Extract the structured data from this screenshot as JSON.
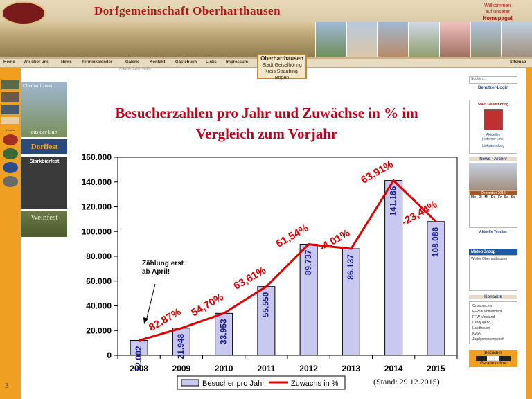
{
  "header": {
    "site_title": "Dorfgemeinschaft Oberharthausen",
    "welcome_line1": "Willkommen",
    "welcome_line2": "auf unserer",
    "welcome_line3": "Homepage!"
  },
  "nav": {
    "items": [
      "Home",
      "Wir über uns",
      "News",
      "Terminkalender",
      "Galerie",
      "Kontakt",
      "Gästebuch",
      "Links",
      "Impressum"
    ],
    "sitemap": "Sitemap",
    "actual_page": "Aktuelle Seite: Home"
  },
  "place_box": {
    "name": "Oberharthausen",
    "line2": "Stadt Geiselhöring",
    "line3": "Kreis Straubing-Bogen"
  },
  "left": {
    "aus_der_luft": "aus der Luft",
    "oberharthausen": "Oberharthausen",
    "dorffest": "Dorffest",
    "starkbierfest": "Starkbierfest",
    "weinfest": "Weinfest",
    "vereine": "Vereine"
  },
  "right": {
    "search_placeholder": "Suchen...",
    "login": "Benutzer-Login",
    "stadt": "Stadt Geiselhöring",
    "aktuelles": "Aktuelles",
    "externer": "(externer Link)",
    "linksammlung": "Linksammlung",
    "news_archiv": "News - Archiv",
    "calendar_title": "Dezember 2015",
    "calendar_days": [
      "Mo",
      "Di",
      "Mi",
      "Do",
      "Fr",
      "Sa",
      "So"
    ],
    "aktuelle_termine": "Aktuelle Termine",
    "meteo": "MeteoGroup",
    "wetter": "Wetter Oberharthausen",
    "kontakte": "Kontakte",
    "kontakte_items": [
      "Ortssprecher",
      "FFW-Kommandant",
      "FFW-Vorstand",
      "Landjugend",
      "Landfrauen",
      "KvSK",
      "Jagdgenossenschaft"
    ],
    "besucher": "Besucher",
    "gerade_online": "Gerade online"
  },
  "title_line1": "Besucherzahlen pro Jahr und Zuwächse in % im",
  "title_line2": "Vergleich zum Vorjahr",
  "annotation_line1": "Zählung erst",
  "annotation_line2": "ab April!",
  "stand": "(Stand: 29.12.2015)",
  "page_number": "3",
  "colors": {
    "bar_fill": "#c8c8f0",
    "bar_stroke": "#000000",
    "line": "#e00000",
    "title": "#c0001a",
    "bar_label": "#1a1a9a",
    "growth_label": "#e00000",
    "accent_orange": "#f0a020"
  },
  "chart_data": {
    "type": "bar",
    "categories": [
      "2008",
      "2009",
      "2010",
      "2011",
      "2012",
      "2013",
      "2014",
      "2015"
    ],
    "series": [
      {
        "name": "Besucher pro Jahr",
        "values": [
          12002,
          21948,
          33953,
          55550,
          89737,
          86137,
          141186,
          108086
        ],
        "labels": [
          "12.002",
          "21.948",
          "33.953",
          "55.550",
          "89.737",
          "86.137",
          "141.186",
          "108.086"
        ]
      },
      {
        "name": "Zuwachs in %",
        "type": "line",
        "values": [
          12002,
          21948,
          33953,
          55550,
          89737,
          86137,
          141186,
          108086
        ],
        "growth_labels": [
          "",
          "82,87%",
          "54,70%",
          "63,61%",
          "61,54%",
          "-4,01%",
          "63,91%",
          "-23,44%"
        ]
      }
    ],
    "ylim": [
      0,
      160000
    ],
    "yticks": [
      "0",
      "20.000",
      "40.000",
      "60.000",
      "80.000",
      "100.000",
      "120.000",
      "140.000",
      "160.000"
    ],
    "ytick_values": [
      0,
      20000,
      40000,
      60000,
      80000,
      100000,
      120000,
      140000,
      160000
    ],
    "grid": false,
    "legend_position": "bottom"
  }
}
